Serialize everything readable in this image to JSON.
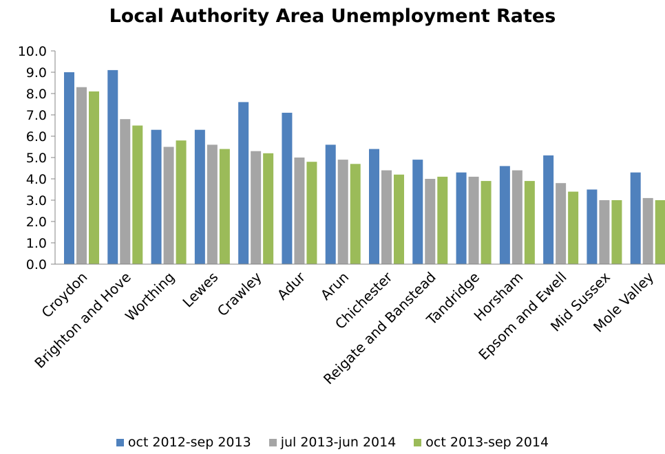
{
  "chart_data": {
    "type": "bar",
    "title": "Local Authority Area Unemployment Rates",
    "xlabel": "",
    "ylabel": "",
    "ylim": [
      0,
      10
    ],
    "yticks": [
      "0.0",
      "1.0",
      "2.0",
      "3.0",
      "4.0",
      "5.0",
      "6.0",
      "7.0",
      "8.0",
      "9.0",
      "10.0"
    ],
    "grid": false,
    "legend_position": "bottom",
    "categories": [
      "Croydon",
      "Brighton and Hove",
      "Worthing",
      "Lewes",
      "Crawley",
      "Adur",
      "Arun",
      "Chichester",
      "Reigate and Banstead",
      "Tandridge",
      "Horsham",
      "Epsom and Ewell",
      "Mid Sussex",
      "Mole Valley"
    ],
    "series": [
      {
        "name": "oct 2012-sep 2013",
        "color": "#4f81bd",
        "values": [
          9.0,
          9.1,
          6.3,
          6.3,
          7.6,
          7.1,
          5.6,
          5.4,
          4.9,
          4.3,
          4.6,
          5.1,
          3.5,
          4.3
        ]
      },
      {
        "name": "jul 2013-jun 2014",
        "color": "#a5a5a5",
        "values": [
          8.3,
          6.8,
          5.5,
          5.6,
          5.3,
          5.0,
          4.9,
          4.4,
          4.0,
          4.1,
          4.4,
          3.8,
          3.0,
          3.1
        ]
      },
      {
        "name": "oct 2013-sep 2014",
        "color": "#9bbb59",
        "values": [
          8.1,
          6.5,
          5.8,
          5.4,
          5.2,
          4.8,
          4.7,
          4.2,
          4.1,
          3.9,
          3.9,
          3.4,
          3.0,
          3.0
        ]
      }
    ]
  }
}
